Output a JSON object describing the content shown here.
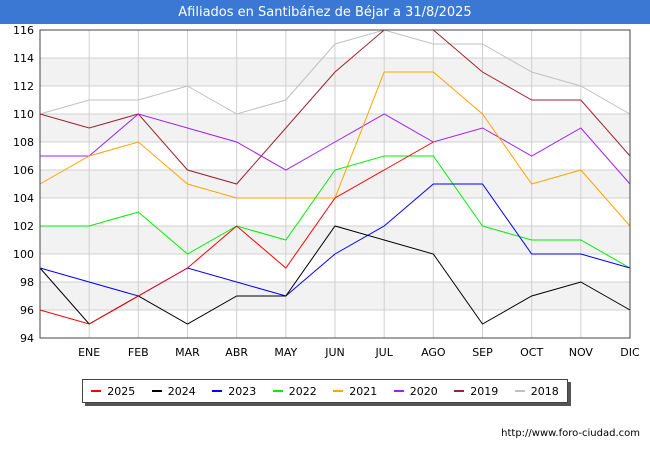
{
  "title": "Afiliados en Santibáñez de Béjar a 31/8/2025",
  "footer": "http://www.foro-ciudad.com",
  "chart_data": {
    "type": "line",
    "title": "Afiliados en Santibáñez de Béjar a 31/8/2025",
    "categories": [
      "",
      "ENE",
      "FEB",
      "MAR",
      "ABR",
      "MAY",
      "JUN",
      "JUL",
      "AGO",
      "SEP",
      "OCT",
      "NOV",
      "DIC"
    ],
    "ylim": [
      94,
      116
    ],
    "yticks": [
      94,
      96,
      98,
      100,
      102,
      104,
      106,
      108,
      110,
      112,
      114,
      116
    ],
    "grid": true,
    "legend_position": "bottom",
    "series": [
      {
        "name": "2025",
        "color": "#ff0000",
        "values": [
          96,
          95,
          97,
          99,
          102,
          99,
          104,
          106,
          108,
          null,
          null,
          null,
          null
        ]
      },
      {
        "name": "2024",
        "color": "#000000",
        "values": [
          99,
          95,
          97,
          95,
          97,
          97,
          102,
          101,
          100,
          95,
          97,
          98,
          96
        ]
      },
      {
        "name": "2023",
        "color": "#0000ff",
        "values": [
          99,
          98,
          97,
          99,
          98,
          97,
          100,
          102,
          105,
          105,
          100,
          100,
          99
        ]
      },
      {
        "name": "2022",
        "color": "#00ee00",
        "values": [
          102,
          102,
          103,
          100,
          102,
          101,
          106,
          107,
          107,
          102,
          101,
          101,
          99
        ]
      },
      {
        "name": "2021",
        "color": "#ffa500",
        "values": [
          105,
          107,
          108,
          105,
          104,
          104,
          104,
          113,
          113,
          110,
          105,
          106,
          102
        ]
      },
      {
        "name": "2020",
        "color": "#a020f0",
        "values": [
          107,
          107,
          110,
          109,
          108,
          106,
          108,
          110,
          108,
          109,
          107,
          109,
          105
        ]
      },
      {
        "name": "2019",
        "color": "#a0202f",
        "values": [
          110,
          109,
          110,
          106,
          105,
          109,
          113,
          116,
          116,
          113,
          111,
          111,
          107
        ]
      },
      {
        "name": "2018",
        "color": "#c0c0c0",
        "values": [
          110,
          111,
          111,
          112,
          110,
          111,
          115,
          116,
          115,
          115,
          113,
          112,
          110
        ]
      }
    ]
  }
}
